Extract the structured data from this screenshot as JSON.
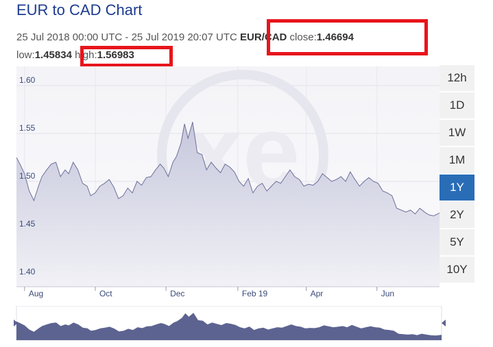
{
  "header": {
    "title": "EUR to CAD Chart",
    "date_range": "25 Jul 2018 00:00 UTC - 25 Jul 2019 20:07 UTC",
    "pair": "EUR/CAD",
    "close_label": "close:",
    "close_value": "1.46694",
    "low_label": "low:",
    "low_value": "1.45834",
    "high_label": "high:",
    "high_value": "1.56983"
  },
  "highlight_color": "#e8141c",
  "watermark": "xe",
  "range_buttons": [
    {
      "label": "12h",
      "active": false
    },
    {
      "label": "1D",
      "active": false
    },
    {
      "label": "1W",
      "active": false
    },
    {
      "label": "1M",
      "active": false
    },
    {
      "label": "1Y",
      "active": true
    },
    {
      "label": "2Y",
      "active": false
    },
    {
      "label": "5Y",
      "active": false
    },
    {
      "label": "10Y",
      "active": false
    }
  ],
  "chart_data": {
    "type": "area",
    "title": "",
    "xlabel": "",
    "ylabel": "",
    "ylim": [
      1.39,
      1.62
    ],
    "xlim": [
      "2018-07-25",
      "2019-07-25"
    ],
    "y_ticks": [
      1.4,
      1.45,
      1.5,
      1.55,
      1.6
    ],
    "y_tick_labels": [
      "1.40",
      "1.45",
      "1.50",
      "1.55",
      "1.60"
    ],
    "x_ticks": [
      "2018-08-01",
      "2018-10-01",
      "2018-12-01",
      "2019-02-01",
      "2019-04-01",
      "2019-06-01"
    ],
    "x_tick_labels": [
      "Aug",
      "Oct",
      "Dec",
      "Feb 19",
      "Apr",
      "Jun"
    ],
    "grid": true,
    "colors": {
      "fill": "#c9cadd",
      "line": "#6d6f9a",
      "navigator_fill": "#5d6390",
      "active_button": "#2a6db7"
    },
    "series": [
      {
        "x": [
          "2018-07-25",
          "2018-07-28",
          "2018-08-01",
          "2018-08-05",
          "2018-08-09",
          "2018-08-13",
          "2018-08-16",
          "2018-08-20",
          "2018-08-24",
          "2018-08-28",
          "2018-09-01",
          "2018-09-05",
          "2018-09-08",
          "2018-09-12",
          "2018-09-16",
          "2018-09-20",
          "2018-09-24",
          "2018-09-27",
          "2018-10-01",
          "2018-10-05",
          "2018-10-09",
          "2018-10-13",
          "2018-10-17",
          "2018-10-21",
          "2018-10-25",
          "2018-10-29",
          "2018-11-02",
          "2018-11-06",
          "2018-11-10",
          "2018-11-14",
          "2018-11-18",
          "2018-11-22",
          "2018-11-26",
          "2018-11-29",
          "2018-12-03",
          "2018-12-07",
          "2018-12-10",
          "2018-12-14",
          "2018-12-17",
          "2018-12-20",
          "2018-12-24",
          "2018-12-28",
          "2019-01-01",
          "2019-01-05",
          "2019-01-09",
          "2019-01-13",
          "2019-01-17",
          "2019-01-21",
          "2019-01-25",
          "2019-01-29",
          "2019-02-02",
          "2019-02-06",
          "2019-02-10",
          "2019-02-14",
          "2019-02-18",
          "2019-02-22",
          "2019-02-26",
          "2019-03-02",
          "2019-03-06",
          "2019-03-10",
          "2019-03-14",
          "2019-03-18",
          "2019-03-22",
          "2019-03-26",
          "2019-03-30",
          "2019-04-03",
          "2019-04-07",
          "2019-04-11",
          "2019-04-15",
          "2019-04-19",
          "2019-04-23",
          "2019-04-27",
          "2019-05-01",
          "2019-05-05",
          "2019-05-09",
          "2019-05-13",
          "2019-05-17",
          "2019-05-21",
          "2019-05-25",
          "2019-05-29",
          "2019-06-02",
          "2019-06-06",
          "2019-06-10",
          "2019-06-14",
          "2019-06-18",
          "2019-06-22",
          "2019-06-26",
          "2019-06-30",
          "2019-07-04",
          "2019-07-08",
          "2019-07-12",
          "2019-07-16",
          "2019-07-20",
          "2019-07-25"
        ],
        "y": [
          1.525,
          1.518,
          1.508,
          1.49,
          1.48,
          1.495,
          1.505,
          1.512,
          1.518,
          1.52,
          1.505,
          1.512,
          1.508,
          1.52,
          1.512,
          1.498,
          1.495,
          1.485,
          1.488,
          1.495,
          1.498,
          1.502,
          1.494,
          1.482,
          1.485,
          1.493,
          1.488,
          1.5,
          1.496,
          1.504,
          1.505,
          1.512,
          1.518,
          1.514,
          1.505,
          1.52,
          1.526,
          1.54,
          1.56,
          1.545,
          1.562,
          1.53,
          1.528,
          1.512,
          1.52,
          1.514,
          1.509,
          1.518,
          1.515,
          1.51,
          1.5,
          1.495,
          1.503,
          1.488,
          1.495,
          1.498,
          1.49,
          1.495,
          1.5,
          1.498,
          1.505,
          1.512,
          1.505,
          1.502,
          1.495,
          1.497,
          1.496,
          1.5,
          1.508,
          1.504,
          1.5,
          1.502,
          1.505,
          1.5,
          1.51,
          1.502,
          1.495,
          1.5,
          1.504,
          1.5,
          1.498,
          1.49,
          1.488,
          1.485,
          1.472,
          1.47,
          1.468,
          1.47,
          1.466,
          1.472,
          1.468,
          1.465,
          1.464,
          1.467
        ]
      }
    ]
  }
}
